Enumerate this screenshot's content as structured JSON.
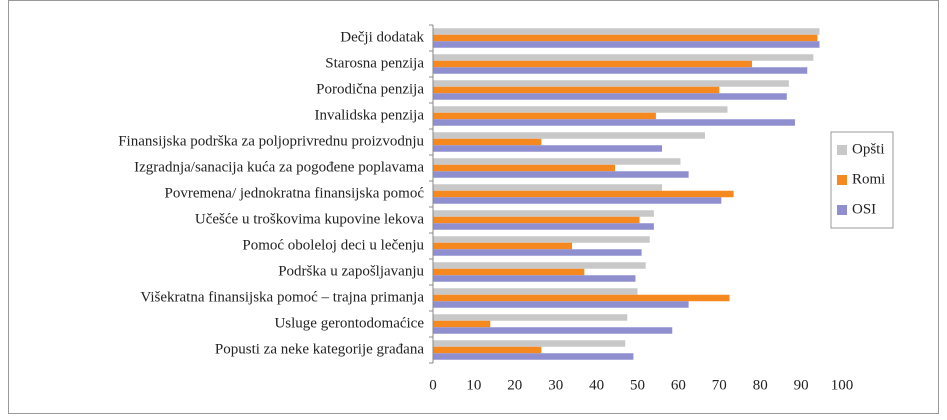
{
  "chart_data": {
    "type": "hbar",
    "categories": [
      "Dečji dodatak",
      "Starosna penzija",
      "Porodična penzija",
      "Invalidska penzija",
      "Finansijska podrška za poljoprivrednu proizvodnju",
      "Izgradnja/sanacija kuća za pogođene poplavama",
      "Povremena/ jednokratna finansijska pomoć",
      "Učešće u troškovima kupovine lekova",
      "Pomoć oboleloj deci u lečenju",
      "Podrška u zapošljavanju",
      "Višekratna finansijska pomoć – trajna primanja",
      "Usluge gerontodomaćice",
      "Popusti za neke kategorije građana"
    ],
    "series": [
      {
        "name": "Opšti",
        "color": "#c8c8c8",
        "values": [
          94.5,
          93,
          87,
          72,
          66.5,
          60.5,
          56,
          54,
          53,
          52,
          50,
          47.5,
          47
        ]
      },
      {
        "name": "Romi",
        "color": "#f5891f",
        "values": [
          94,
          78,
          70,
          54.5,
          26.5,
          44.5,
          73.5,
          50.5,
          34,
          37,
          72.5,
          14,
          26.5
        ]
      },
      {
        "name": "OSI",
        "color": "#8f8fd0",
        "values": [
          94.5,
          91.5,
          86.5,
          88.5,
          56,
          62.5,
          70.5,
          54,
          51,
          49.5,
          62.5,
          58.5,
          49
        ]
      }
    ],
    "xlim": [
      0,
      100
    ],
    "xticks": [
      0,
      10,
      20,
      30,
      40,
      50,
      60,
      70,
      80,
      90,
      100
    ],
    "legend": "right"
  }
}
